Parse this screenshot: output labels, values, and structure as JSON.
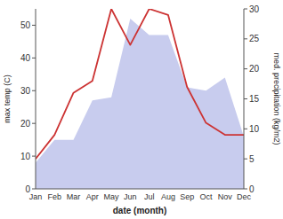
{
  "chart_data": {
    "type": "area",
    "categories": [
      "Jan",
      "Feb",
      "Mar",
      "Apr",
      "May",
      "Jun",
      "Jul",
      "Aug",
      "Sep",
      "Oct",
      "Nov",
      "Dec"
    ],
    "series": [
      {
        "type": "area",
        "color": "#c8ccee",
        "values": [
          8,
          15,
          15,
          27,
          28,
          52,
          47,
          47,
          31,
          30,
          34,
          16
        ]
      },
      {
        "type": "line",
        "color": "#cc3333",
        "axis": "y2",
        "values": [
          5,
          9,
          16,
          18,
          30,
          24,
          30,
          29,
          17,
          11,
          9,
          9
        ]
      }
    ],
    "xlabel": "date (month)",
    "ylabel": "max temp (C)",
    "y2label": "med. precipitation (kg/m2)",
    "ylim": [
      0,
      55
    ],
    "yticks": [
      0,
      10,
      20,
      30,
      40,
      50
    ],
    "y2lim": [
      0,
      30
    ],
    "y2ticks": [
      0,
      5,
      10,
      15,
      20,
      25,
      30
    ]
  }
}
